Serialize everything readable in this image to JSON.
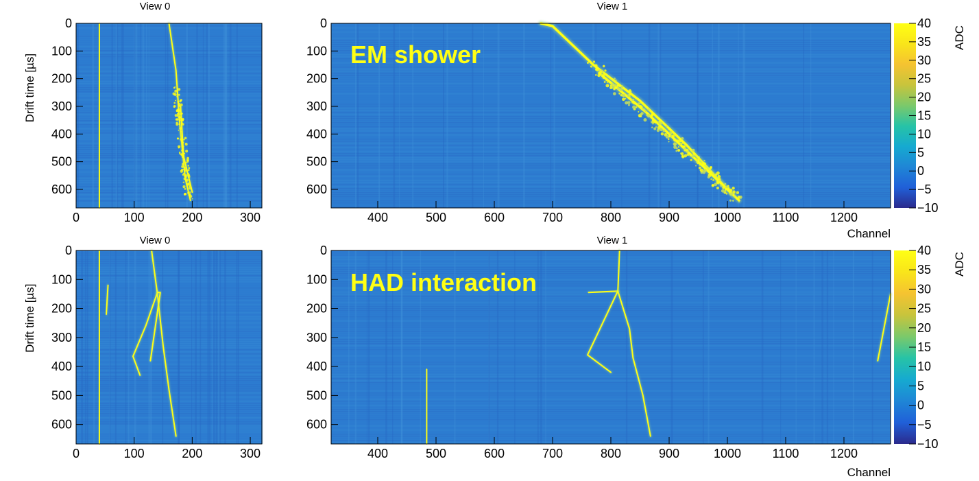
{
  "palette": [
    "#2b2a8c",
    "#2060d8",
    "#1f86d6",
    "#16aad0",
    "#27c3a6",
    "#7cc96a",
    "#c8c43c",
    "#f5c331",
    "#f9e51a",
    "#ffff14"
  ],
  "background_fill": "#2d7dd0",
  "track_color": "#ffff14",
  "chart_data": [
    {
      "type": "heatmap",
      "title": "View 0",
      "ylabel": "Drift time [µs]",
      "xlim": [
        0,
        320
      ],
      "ylim": [
        0,
        667
      ],
      "x_ticks": [
        0,
        100,
        200,
        300
      ],
      "y_ticks": [
        0,
        100,
        200,
        300,
        400,
        500,
        600
      ],
      "tracks": [
        {
          "points": [
            [
              40,
              0
            ],
            [
              40,
              667
            ]
          ]
        },
        {
          "points": [
            [
              160,
              0
            ],
            [
              172,
              170
            ],
            [
              178,
              350
            ],
            [
              188,
              560
            ],
            [
              197,
              640
            ]
          ]
        },
        {
          "points": [
            [
              180,
              300
            ],
            [
              185,
              480
            ],
            [
              200,
              610
            ]
          ]
        }
      ]
    },
    {
      "type": "heatmap",
      "title": "View 1",
      "overlay_text": "EM shower",
      "xlabel": "Channel",
      "xlim": [
        320,
        1280
      ],
      "ylim": [
        0,
        667
      ],
      "x_ticks": [
        400,
        500,
        600,
        700,
        800,
        900,
        1000,
        1100,
        1200
      ],
      "y_ticks": [
        0,
        100,
        200,
        300,
        400,
        500,
        600
      ],
      "colorbar": {
        "label": "ADC",
        "range": [
          -10,
          40
        ],
        "ticks": [
          40,
          35,
          30,
          25,
          20,
          15,
          10,
          5,
          0,
          -5,
          -10
        ]
      },
      "tracks": [
        {
          "points": [
            [
              680,
              0
            ],
            [
              700,
              10
            ],
            [
              770,
              150
            ],
            [
              850,
              280
            ],
            [
              930,
              440
            ],
            [
              1000,
              600
            ],
            [
              1020,
              640
            ]
          ]
        },
        {
          "points": [
            [
              780,
              180
            ],
            [
              860,
              320
            ],
            [
              940,
              480
            ],
            [
              1010,
              620
            ]
          ]
        }
      ]
    },
    {
      "type": "heatmap",
      "title": "View 0",
      "ylabel": "Drift time [µs]",
      "xlim": [
        0,
        320
      ],
      "ylim": [
        0,
        667
      ],
      "x_ticks": [
        0,
        100,
        200,
        300
      ],
      "y_ticks": [
        0,
        100,
        200,
        300,
        400,
        500,
        600
      ],
      "tracks": [
        {
          "points": [
            [
              130,
              0
            ],
            [
              140,
              150
            ],
            [
              150,
              330
            ],
            [
              160,
              480
            ],
            [
              172,
              640
            ]
          ]
        },
        {
          "points": [
            [
              140,
              145
            ],
            [
              120,
              260
            ],
            [
              98,
              365
            ],
            [
              110,
              430
            ]
          ]
        },
        {
          "points": [
            [
              140,
              145
            ],
            [
              145,
              145
            ],
            [
              128,
              380
            ]
          ]
        },
        {
          "points": [
            [
              55,
              120
            ],
            [
              52,
              220
            ]
          ]
        },
        {
          "points": [
            [
              40,
              0
            ],
            [
              40,
              667
            ]
          ]
        }
      ]
    },
    {
      "type": "heatmap",
      "title": "View 1",
      "overlay_text": "HAD interaction",
      "xlabel": "Channel",
      "xlim": [
        320,
        1280
      ],
      "ylim": [
        0,
        667
      ],
      "x_ticks": [
        400,
        500,
        600,
        700,
        800,
        900,
        1000,
        1100,
        1200
      ],
      "y_ticks": [
        0,
        100,
        200,
        300,
        400,
        500,
        600
      ],
      "colorbar": {
        "label": "ADC",
        "range": [
          -10,
          40
        ],
        "ticks": [
          40,
          35,
          30,
          25,
          20,
          15,
          10,
          5,
          0,
          -5,
          -10
        ]
      },
      "tracks": [
        {
          "points": [
            [
              815,
              0
            ],
            [
              812,
              140
            ]
          ]
        },
        {
          "points": [
            [
              762,
              145
            ],
            [
              812,
              140
            ]
          ]
        },
        {
          "points": [
            [
              812,
              140
            ],
            [
              832,
              270
            ],
            [
              838,
              370
            ],
            [
              855,
              500
            ],
            [
              868,
              640
            ]
          ]
        },
        {
          "points": [
            [
              812,
              140
            ],
            [
              760,
              360
            ],
            [
              800,
              420
            ]
          ]
        },
        {
          "points": [
            [
              1280,
              150
            ],
            [
              1258,
              380
            ]
          ]
        },
        {
          "points": [
            [
              484,
              410
            ],
            [
              484,
              667
            ]
          ]
        }
      ]
    }
  ]
}
